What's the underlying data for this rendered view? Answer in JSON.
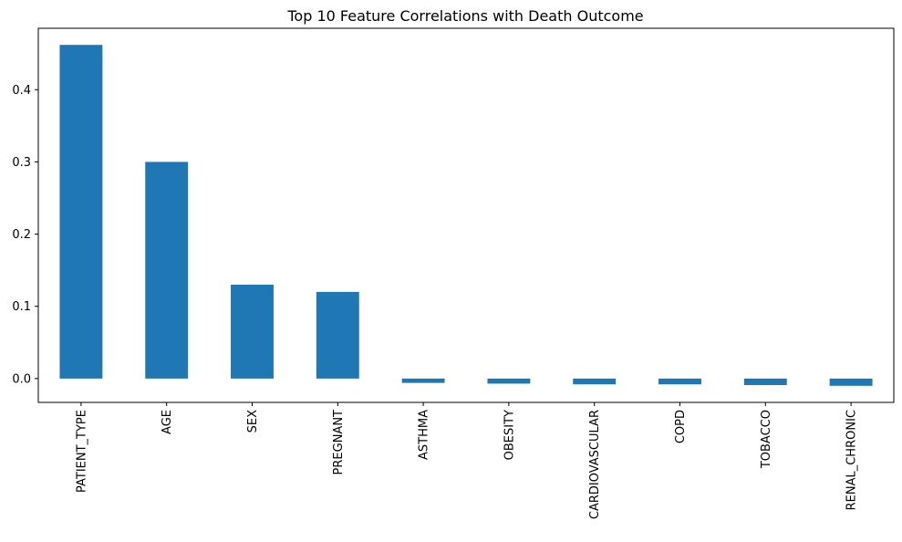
{
  "chart_data": {
    "type": "bar",
    "title": "Top 10 Feature Correlations with Death Outcome",
    "xlabel": "",
    "ylabel": "",
    "categories": [
      "PATIENT_TYPE",
      "AGE",
      "SEX",
      "PREGNANT",
      "ASTHMA",
      "OBESITY",
      "CARDIOVASCULAR",
      "COPD",
      "TOBACCO",
      "RENAL_CHRONIC"
    ],
    "values": [
      0.462,
      0.3,
      0.13,
      0.12,
      -0.006,
      -0.007,
      -0.008,
      -0.008,
      -0.009,
      -0.01
    ],
    "ylim": [
      -0.033,
      0.485
    ],
    "yticks": [
      0.0,
      0.1,
      0.2,
      0.3,
      0.4
    ],
    "ytick_labels": [
      "0.0",
      "0.1",
      "0.2",
      "0.3",
      "0.4"
    ],
    "bar_color": "#1f77b4",
    "grid": false,
    "legend": "none"
  }
}
